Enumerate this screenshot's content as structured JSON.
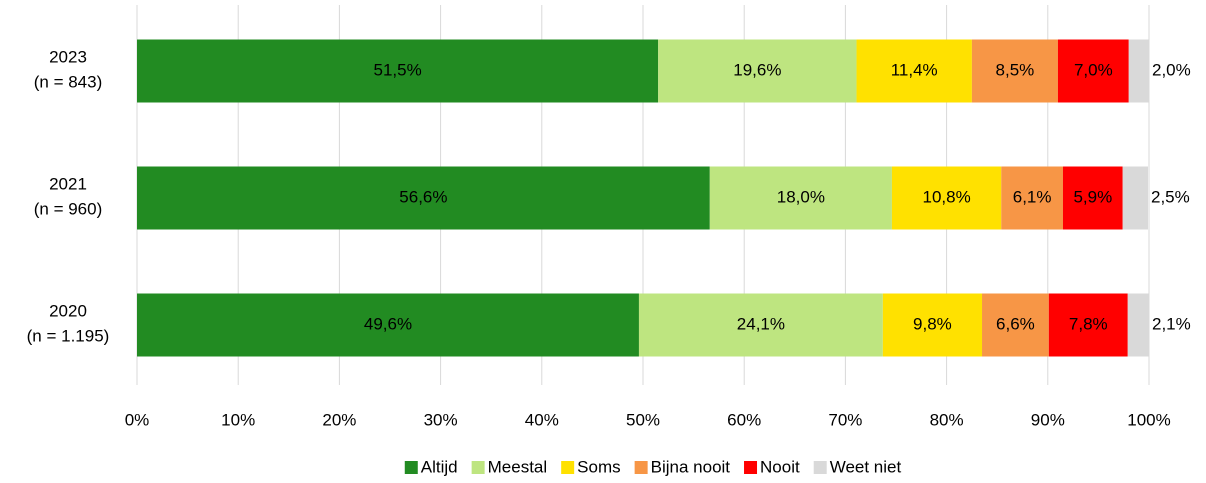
{
  "chart_data": {
    "type": "stacked_bar_horizontal",
    "categories": [
      "2023\n(n = 843)",
      "2021\n(n = 960)",
      "2020\n(n = 1.195)"
    ],
    "series": [
      {
        "name": "Altijd",
        "color": "#228b22",
        "values": [
          51.5,
          56.6,
          49.6
        ],
        "value_labels": [
          "51,5%",
          "56,6%",
          "49,6%"
        ]
      },
      {
        "name": "Meestal",
        "color": "#bee580",
        "values": [
          19.6,
          18.0,
          24.1
        ],
        "value_labels": [
          "19,6%",
          "18,0%",
          "24,1%"
        ]
      },
      {
        "name": "Soms",
        "color": "#ffe100",
        "values": [
          11.4,
          10.8,
          9.8
        ],
        "value_labels": [
          "11,4%",
          "10,8%",
          "9,8%"
        ]
      },
      {
        "name": "Bijna nooit",
        "color": "#f79646",
        "values": [
          8.5,
          6.1,
          6.6
        ],
        "value_labels": [
          "8,5%",
          "6,1%",
          "6,6%"
        ]
      },
      {
        "name": "Nooit",
        "color": "#ff0000",
        "values": [
          7.0,
          5.9,
          7.8
        ],
        "value_labels": [
          "7,0%",
          "5,9%",
          "7,8%"
        ]
      },
      {
        "name": "Weet niet",
        "color": "#d9d9d9",
        "values": [
          2.0,
          2.5,
          2.1
        ],
        "value_labels": [
          "2,0%",
          "2,5%",
          "2,1%"
        ]
      }
    ],
    "xlim": [
      0,
      100
    ],
    "xticks": [
      {
        "value": 0,
        "label": "0%"
      },
      {
        "value": 10,
        "label": "10%"
      },
      {
        "value": 20,
        "label": "20%"
      },
      {
        "value": 30,
        "label": "30%"
      },
      {
        "value": 40,
        "label": "40%"
      },
      {
        "value": 50,
        "label": "50%"
      },
      {
        "value": 60,
        "label": "60%"
      },
      {
        "value": 70,
        "label": "70%"
      },
      {
        "value": 80,
        "label": "80%"
      },
      {
        "value": 90,
        "label": "90%"
      },
      {
        "value": 100,
        "label": "100%"
      }
    ],
    "grid": true,
    "legend": "bottom"
  }
}
